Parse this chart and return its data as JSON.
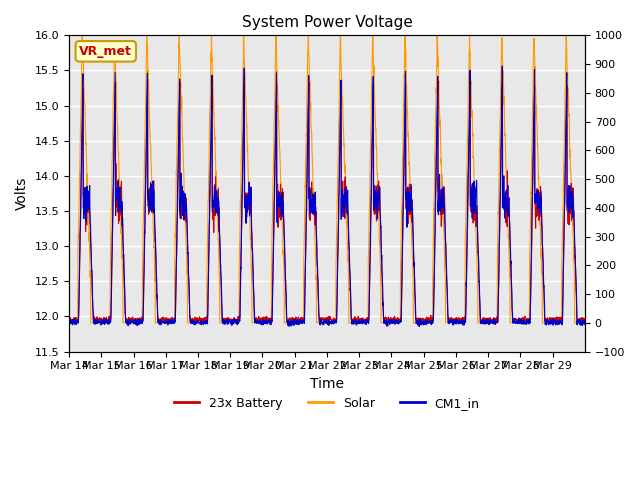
{
  "title": "System Power Voltage",
  "xlabel": "Time",
  "ylabel": "Volts",
  "ylim_left": [
    11.5,
    16.0
  ],
  "ylim_right": [
    -100,
    1000
  ],
  "yticks_left": [
    11.5,
    12.0,
    12.5,
    13.0,
    13.5,
    14.0,
    14.5,
    15.0,
    15.5,
    16.0
  ],
  "yticks_right": [
    -100,
    0,
    100,
    200,
    300,
    400,
    500,
    600,
    700,
    800,
    900,
    1000
  ],
  "xtick_labels": [
    "Mar 14",
    "Mar 15",
    "Mar 16",
    "Mar 17",
    "Mar 18",
    "Mar 19",
    "Mar 20",
    "Mar 21",
    "Mar 22",
    "Mar 23",
    "Mar 24",
    "Mar 25",
    "Mar 26",
    "Mar 27",
    "Mar 28",
    "Mar 29"
  ],
  "legend_labels": [
    "23x Battery",
    "Solar",
    "CM1_in"
  ],
  "legend_colors": [
    "#cc0000",
    "#ff9900",
    "#0000cc"
  ],
  "vr_met_box_color": "#cc9900",
  "vr_met_text_color": "#cc0000",
  "bg_color": "#ffffff",
  "plot_bg_color": "#e8e8e8",
  "grid_color": "#ffffff",
  "n_days": 16,
  "day_hours": 24,
  "pts_per_hour": 6
}
